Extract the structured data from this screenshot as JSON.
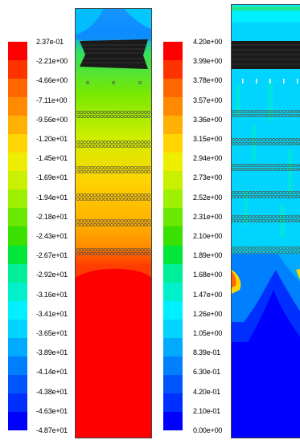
{
  "left_panel": {
    "scale_labels": [
      "2.37e-01",
      "-2.21e+00",
      "-4.66e+00",
      "-7.11e+00",
      "-9.56e+00",
      "-1.20e+01",
      "-1.45e+01",
      "-1.69e+01",
      "-1.94e+01",
      "-2.18e+01",
      "-2.43e+01",
      "-2.67e+01",
      "-2.92e+01",
      "-3.16e+01",
      "-3.41e+01",
      "-3.65e+01",
      "-3.89e+01",
      "-4.14e+01",
      "-4.38e+01",
      "-4.63e+01",
      "-4.87e+01"
    ],
    "scale_colors": [
      "#ff0000",
      "#ff3300",
      "#ff6600",
      "#ff8a00",
      "#ffb000",
      "#ffd400",
      "#eeef00",
      "#c8f000",
      "#9ef000",
      "#6ae800",
      "#39e000",
      "#00e63a",
      "#00ee99",
      "#00f0cc",
      "#00f0ff",
      "#00d4ff",
      "#00aaff",
      "#0080ff",
      "#0055ff",
      "#0030ff",
      "#0000ff"
    ]
  },
  "right_panel": {
    "scale_labels": [
      "4.20e+00",
      "3.99e+00",
      "3.78e+00",
      "3.57e+00",
      "3.36e+00",
      "3.15e+00",
      "2.94e+00",
      "2.73e+00",
      "2.52e+00",
      "2.31e+00",
      "2.10e+00",
      "1.89e+00",
      "1.68e+00",
      "1.47e+00",
      "1.26e+00",
      "1.05e+00",
      "8.39e-01",
      "6.30e-01",
      "4.20e-01",
      "2.10e-01",
      "0.00e+00"
    ],
    "scale_colors": [
      "#ff0000",
      "#ff3300",
      "#ff6600",
      "#ff8a00",
      "#ffb000",
      "#ffd400",
      "#eeef00",
      "#c8f000",
      "#9ef000",
      "#6ae800",
      "#39e000",
      "#00e63a",
      "#00ee99",
      "#00f0cc",
      "#00f0ff",
      "#00d4ff",
      "#00aaff",
      "#0080ff",
      "#0055ff",
      "#0030ff",
      "#0000ff"
    ]
  }
}
